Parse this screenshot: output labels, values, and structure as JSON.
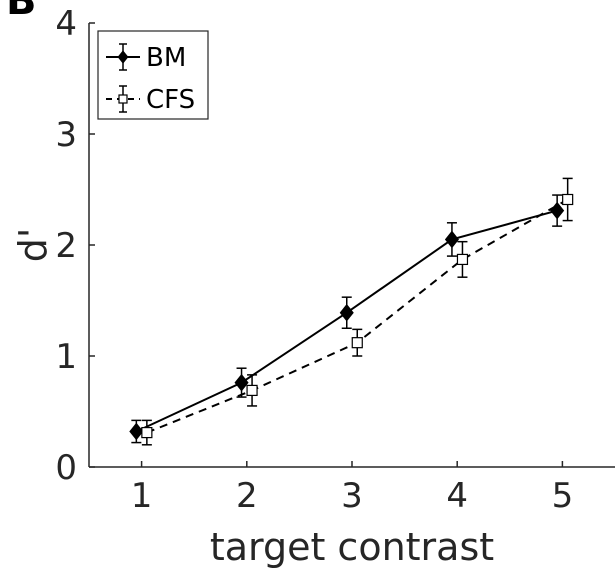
{
  "panel_label": "B",
  "chart_data": {
    "type": "line",
    "x": [
      1,
      2,
      3,
      4,
      5
    ],
    "xlabel": "target contrast",
    "ylabel": "d'",
    "xlim": [
      0.5,
      5.5
    ],
    "ylim": [
      0,
      4
    ],
    "xticks": [
      "1",
      "2",
      "3",
      "4",
      "5"
    ],
    "yticks": [
      "0",
      "1",
      "2",
      "3",
      "4"
    ],
    "grid": false,
    "legend_position": "top-left",
    "series": [
      {
        "name": "BM",
        "values": [
          0.32,
          0.76,
          1.39,
          2.05,
          2.31
        ],
        "error": [
          0.1,
          0.13,
          0.14,
          0.15,
          0.14
        ],
        "x_offset": -0.05,
        "line_style": "solid",
        "marker": "filled-diamond",
        "color": "#000000"
      },
      {
        "name": "CFS",
        "values": [
          0.31,
          0.69,
          1.12,
          1.87,
          2.41
        ],
        "error": [
          0.11,
          0.14,
          0.12,
          0.16,
          0.19
        ],
        "x_offset": 0.05,
        "line_style": "dashed",
        "marker": "open-square",
        "color": "#000000"
      }
    ]
  }
}
